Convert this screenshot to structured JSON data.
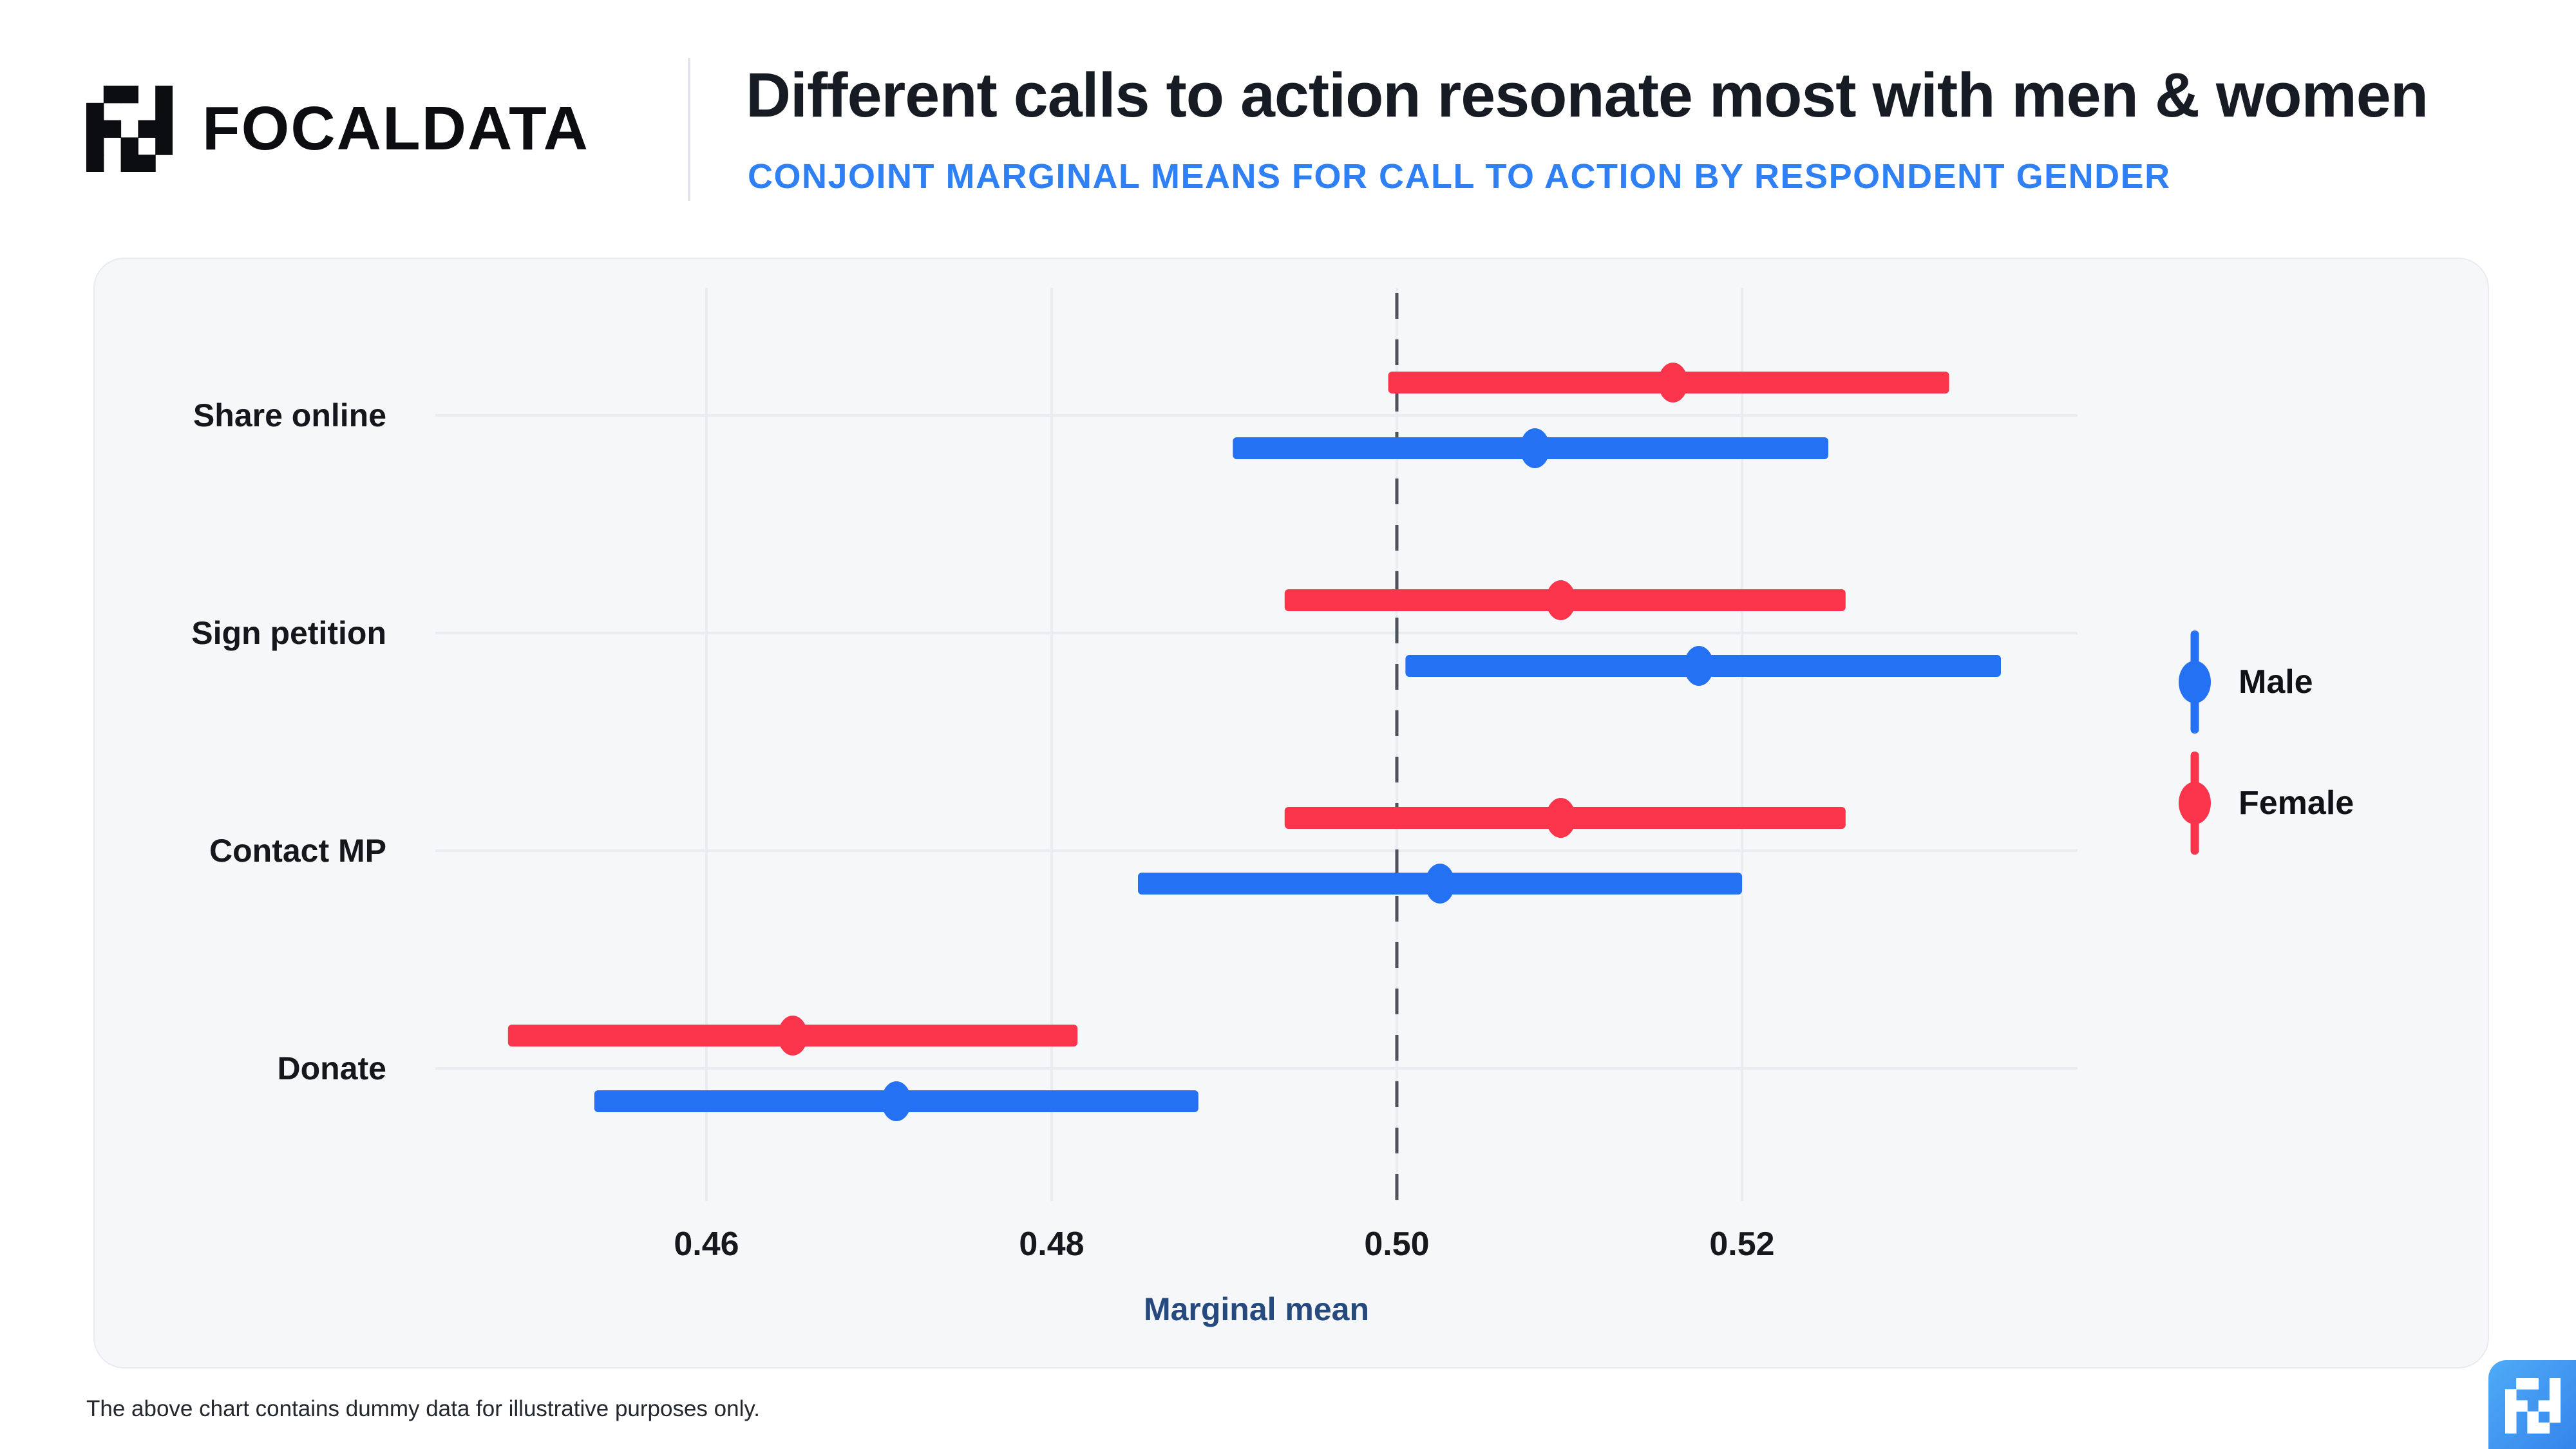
{
  "header": {
    "brand": "FOCALDATA",
    "title": "Different calls to action resonate most with men & women",
    "subtitle": "CONJOINT MARGINAL MEANS FOR CALL TO ACTION BY RESPONDENT GENDER"
  },
  "colors": {
    "male": "#2571F3",
    "female": "#F9344B",
    "subtitle_blue": "#2F80F5",
    "axis_label_navy": "#26497E",
    "panel_bg": "#F6F7F9",
    "gridline": "#E9EDF2",
    "reference_line": "#4D535A",
    "title_text": "#171B24",
    "badge_gradient_start": "#4FABF7",
    "badge_gradient_end": "#2D79E8"
  },
  "chart_data": {
    "type": "scatter",
    "style": "dot-and-whisker",
    "categories": [
      "Share online",
      "Sign petition",
      "Contact MP",
      "Donate"
    ],
    "series": [
      {
        "name": "Male",
        "color": "#2571F3",
        "means": [
          0.508,
          0.5175,
          0.5025,
          0.471
        ],
        "ci_low": [
          0.4905,
          0.5005,
          0.485,
          0.4535
        ],
        "ci_high": [
          0.525,
          0.535,
          0.52,
          0.4885
        ]
      },
      {
        "name": "Female",
        "color": "#F9344B",
        "means": [
          0.516,
          0.5095,
          0.5095,
          0.465
        ],
        "ci_low": [
          0.4995,
          0.4935,
          0.4935,
          0.4485
        ],
        "ci_high": [
          0.532,
          0.526,
          0.526,
          0.4815
        ]
      }
    ],
    "xlabel": "Marginal mean",
    "x_ticks": [
      0.46,
      0.48,
      0.5,
      0.52
    ],
    "x_tick_labels": [
      "0.46",
      "0.48",
      "0.50",
      "0.52"
    ],
    "xlim": [
      0.4443,
      0.5395
    ],
    "reference_line_x": 0.5,
    "grid": true,
    "legend_position": "right",
    "legend_entries": [
      "Male",
      "Female"
    ]
  },
  "footer": {
    "disclaimer": "The above chart contains dummy data for illustrative purposes only."
  }
}
